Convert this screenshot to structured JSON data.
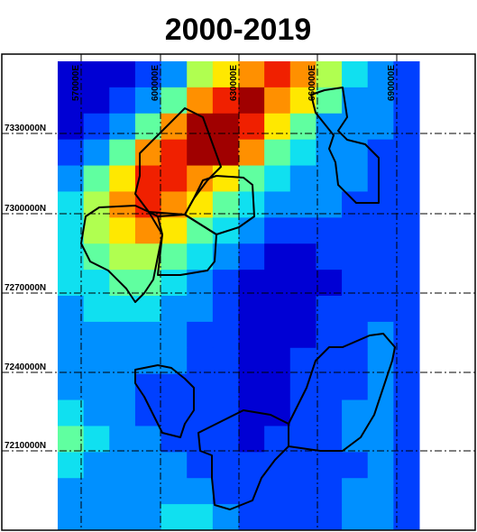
{
  "title": "2000-2019",
  "eastings": [
    "570000E",
    "600000E",
    "630000E",
    "660000E",
    "690000E"
  ],
  "northings": [
    "7330000N",
    "7300000N",
    "7270000N",
    "7240000N",
    "7210000N"
  ],
  "palette": [
    "#00007f",
    "#0000d4",
    "#0040ff",
    "#0090ff",
    "#10e0f0",
    "#60ffa0",
    "#b0ff50",
    "#ffe800",
    "#ff9000",
    "#f02000",
    "#a00000"
  ],
  "grid_levels": [
    [
      1,
      1,
      1,
      2,
      3,
      6,
      7,
      8,
      9,
      8,
      6,
      4,
      3,
      2
    ],
    [
      1,
      1,
      2,
      3,
      5,
      8,
      9,
      10,
      8,
      7,
      5,
      3,
      3,
      2
    ],
    [
      1,
      2,
      3,
      5,
      8,
      10,
      10,
      9,
      7,
      5,
      3,
      3,
      3,
      2
    ],
    [
      2,
      3,
      5,
      8,
      9,
      10,
      10,
      8,
      5,
      4,
      3,
      3,
      2,
      2
    ],
    [
      3,
      5,
      7,
      9,
      9,
      8,
      7,
      5,
      4,
      3,
      3,
      3,
      2,
      2
    ],
    [
      4,
      6,
      8,
      9,
      8,
      7,
      5,
      4,
      3,
      3,
      3,
      2,
      2,
      2
    ],
    [
      4,
      6,
      7,
      8,
      7,
      5,
      4,
      3,
      2,
      2,
      2,
      2,
      2,
      2
    ],
    [
      4,
      5,
      6,
      6,
      5,
      4,
      3,
      2,
      1,
      1,
      2,
      2,
      2,
      2
    ],
    [
      4,
      4,
      5,
      5,
      4,
      3,
      2,
      1,
      1,
      1,
      1,
      2,
      2,
      2
    ],
    [
      3,
      4,
      4,
      4,
      3,
      3,
      2,
      1,
      1,
      1,
      2,
      2,
      2,
      2
    ],
    [
      3,
      3,
      3,
      3,
      3,
      2,
      2,
      1,
      1,
      1,
      2,
      2,
      3,
      2
    ],
    [
      3,
      3,
      3,
      3,
      3,
      2,
      2,
      1,
      1,
      2,
      2,
      2,
      3,
      2
    ],
    [
      3,
      3,
      3,
      2,
      2,
      2,
      2,
      1,
      1,
      2,
      2,
      2,
      3,
      2
    ],
    [
      4,
      3,
      3,
      2,
      2,
      2,
      2,
      1,
      1,
      2,
      2,
      3,
      3,
      2
    ],
    [
      5,
      4,
      3,
      3,
      2,
      2,
      2,
      1,
      2,
      2,
      2,
      3,
      3,
      2
    ],
    [
      4,
      3,
      3,
      3,
      3,
      2,
      2,
      2,
      2,
      2,
      2,
      2,
      3,
      2
    ],
    [
      3,
      3,
      3,
      3,
      3,
      3,
      2,
      2,
      2,
      2,
      2,
      3,
      3,
      2
    ],
    [
      3,
      3,
      3,
      3,
      4,
      4,
      3,
      2,
      2,
      2,
      2,
      3,
      3,
      2
    ]
  ]
}
